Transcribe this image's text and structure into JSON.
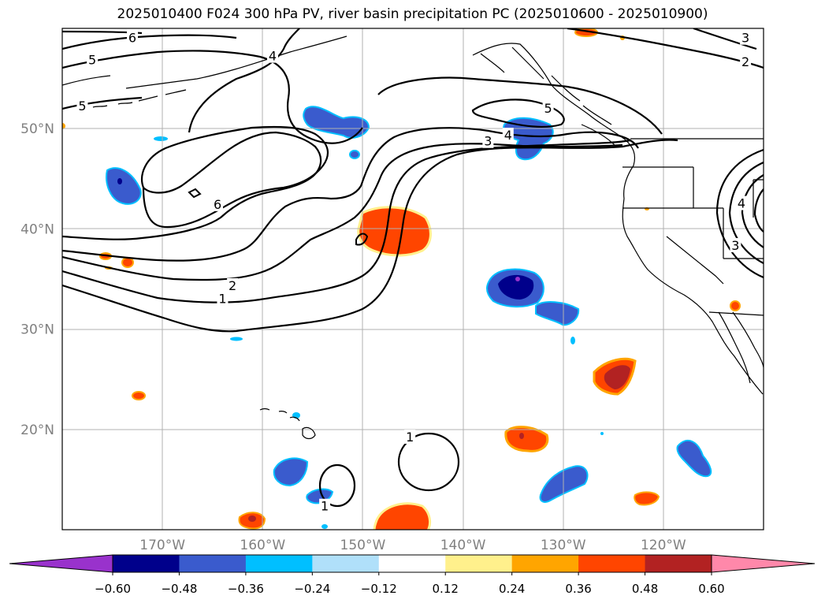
{
  "title": "2025010400 F024 300 hPa PV, river basin precipitation PC (2025010600 - 2025010900)",
  "map": {
    "lon_range": [
      -180,
      -110
    ],
    "lat_range": [
      10,
      60
    ],
    "lon_ticks": [
      {
        "lon": -170,
        "label": "170°W"
      },
      {
        "lon": -160,
        "label": "160°W"
      },
      {
        "lon": -150,
        "label": "150°W"
      },
      {
        "lon": -140,
        "label": "140°W"
      },
      {
        "lon": -130,
        "label": "130°W"
      },
      {
        "lon": -120,
        "label": "120°W"
      }
    ],
    "lat_ticks": [
      {
        "lat": 20,
        "label": "20°N"
      },
      {
        "lat": 30,
        "label": "30°N"
      },
      {
        "lat": 40,
        "label": "40°N"
      },
      {
        "lat": 50,
        "label": "50°N"
      }
    ],
    "grid": true,
    "tick_label_color": "#808080"
  },
  "contour_labels": [
    {
      "text": "6",
      "lon": -173,
      "lat": 59
    },
    {
      "text": "5",
      "lon": -177,
      "lat": 56.8
    },
    {
      "text": "4",
      "lon": -159,
      "lat": 57.2
    },
    {
      "text": "5",
      "lon": -178,
      "lat": 52.2
    },
    {
      "text": "6",
      "lon": -164.5,
      "lat": 42.4
    },
    {
      "text": "2",
      "lon": -163,
      "lat": 34.3
    },
    {
      "text": "1",
      "lon": -164,
      "lat": 33.0
    },
    {
      "text": "3",
      "lon": -137.5,
      "lat": 48.7
    },
    {
      "text": "4",
      "lon": -135.5,
      "lat": 49.3
    },
    {
      "text": "5",
      "lon": -131.5,
      "lat": 52
    },
    {
      "text": "3",
      "lon": -111.8,
      "lat": 59.0
    },
    {
      "text": "2",
      "lon": -111.8,
      "lat": 56.6
    },
    {
      "text": "4",
      "lon": -112.2,
      "lat": 42.5
    },
    {
      "text": "3",
      "lon": -112.8,
      "lat": 38.3
    },
    {
      "text": "1",
      "lon": -145.3,
      "lat": 19.2
    },
    {
      "text": "1",
      "lon": -153.8,
      "lat": 12.3
    }
  ],
  "colorbar": {
    "ticks": [
      "−0.60",
      "−0.48",
      "−0.36",
      "−0.24",
      "−0.12",
      "0.12",
      "0.24",
      "0.36",
      "0.48",
      "0.60"
    ],
    "colors": [
      "#9932cc",
      "#00008b",
      "#3a5bcd",
      "#00bfff",
      "#b0e0fa",
      "#ffffff",
      "#fff08c",
      "#ffa500",
      "#ff4500",
      "#b22222",
      "#ff88aa"
    ]
  }
}
